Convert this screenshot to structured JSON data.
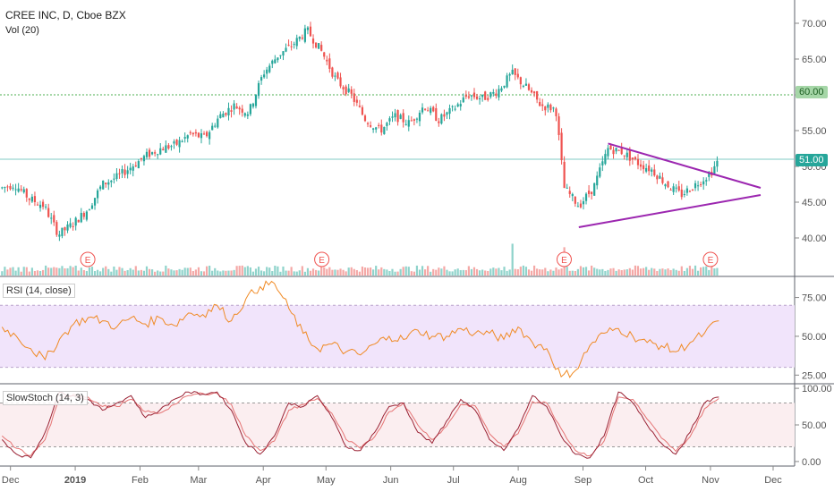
{
  "header": {
    "symbol_line": "CREE INC, D, Cboe BZX",
    "volume_label": "Vol (20)"
  },
  "panes": {
    "rsi_label": "RSI (14, close)",
    "stoch_label": "SlowStoch (14, 3)"
  },
  "price_tags": {
    "level_60": "60.00",
    "level_51": "51.00"
  },
  "earnings_marker": "E",
  "colors": {
    "up": "#26a69a",
    "down": "#ef5350",
    "trendline": "#9c27b0",
    "rsi_line": "#f08a24",
    "rsi_band": "#f1e4fb",
    "stoch_k": "#9b2335",
    "stoch_d": "#e57373",
    "hline_60": "#4caf50",
    "hline_51": "#80cbc4"
  },
  "chart_data": [
    {
      "type": "candlestick",
      "title": "CREE INC, D, Cboe BZX",
      "y_ticks": [
        "40.00",
        "45.00",
        "50.00",
        "55.00",
        "60.00",
        "65.00",
        "70.00"
      ],
      "ylim": [
        36,
        72
      ],
      "x_ticks": [
        "Dec",
        "2019",
        "Feb",
        "Mar",
        "Apr",
        "May",
        "Jun",
        "Jul",
        "Aug",
        "Sep",
        "Oct",
        "Nov",
        "Dec"
      ],
      "close_path": [
        [
          "2018-11-27",
          47.0
        ],
        [
          "2018-12-03",
          47.5
        ],
        [
          "2018-12-10",
          45.5
        ],
        [
          "2018-12-17",
          44.5
        ],
        [
          "2018-12-24",
          40.5
        ],
        [
          "2018-12-31",
          42.0
        ],
        [
          "2019-01-07",
          44.0
        ],
        [
          "2019-01-14",
          47.5
        ],
        [
          "2019-01-21",
          48.5
        ],
        [
          "2019-01-28",
          50.0
        ],
        [
          "2019-02-04",
          51.5
        ],
        [
          "2019-02-11",
          52.5
        ],
        [
          "2019-02-18",
          53.0
        ],
        [
          "2019-02-25",
          54.5
        ],
        [
          "2019-03-04",
          54.0
        ],
        [
          "2019-03-11",
          57.0
        ],
        [
          "2019-03-18",
          58.5
        ],
        [
          "2019-03-25",
          57.5
        ],
        [
          "2019-04-01",
          63.0
        ],
        [
          "2019-04-08",
          65.5
        ],
        [
          "2019-04-15",
          67.0
        ],
        [
          "2019-04-22",
          69.0
        ],
        [
          "2019-04-29",
          66.0
        ],
        [
          "2019-05-06",
          62.0
        ],
        [
          "2019-05-13",
          60.0
        ],
        [
          "2019-05-20",
          56.5
        ],
        [
          "2019-05-27",
          55.0
        ],
        [
          "2019-06-03",
          57.0
        ],
        [
          "2019-06-10",
          56.0
        ],
        [
          "2019-06-17",
          58.5
        ],
        [
          "2019-06-24",
          56.5
        ],
        [
          "2019-07-01",
          58.0
        ],
        [
          "2019-07-08",
          60.0
        ],
        [
          "2019-07-15",
          59.5
        ],
        [
          "2019-07-22",
          60.5
        ],
        [
          "2019-07-29",
          63.0
        ],
        [
          "2019-08-05",
          61.0
        ],
        [
          "2019-08-12",
          58.5
        ],
        [
          "2019-08-19",
          58.0
        ],
        [
          "2019-08-23",
          47.0
        ],
        [
          "2019-08-30",
          44.5
        ],
        [
          "2019-09-06",
          47.0
        ],
        [
          "2019-09-13",
          52.5
        ],
        [
          "2019-09-20",
          52.0
        ],
        [
          "2019-09-27",
          50.5
        ],
        [
          "2019-10-04",
          49.5
        ],
        [
          "2019-10-11",
          47.5
        ],
        [
          "2019-10-18",
          46.0
        ],
        [
          "2019-10-25",
          47.5
        ],
        [
          "2019-11-01",
          49.0
        ],
        [
          "2019-11-05",
          51.0
        ]
      ],
      "horizontal_lines": [
        60.0,
        51.0
      ],
      "trendlines": [
        {
          "from": [
            "2019-09-13",
            53.2
          ],
          "to": [
            "2019-11-25",
            47.0
          ]
        },
        {
          "from": [
            "2019-08-30",
            41.5
          ],
          "to": [
            "2019-11-25",
            46.0
          ]
        }
      ],
      "volume_spikes": [
        [
          "2019-07-29",
          2.2
        ],
        [
          "2019-08-23",
          1.8
        ],
        [
          "2019-11-01",
          1.1
        ]
      ],
      "earnings_dates": [
        "2019-01-07",
        "2019-04-29",
        "2019-08-23",
        "2019-11-01"
      ]
    },
    {
      "type": "line",
      "title": "RSI (14, close)",
      "y_ticks": [
        "25.00",
        "50.00",
        "75.00"
      ],
      "ylim": [
        20,
        88
      ],
      "band": [
        30,
        70
      ],
      "series": [
        {
          "values": [
            56,
            50,
            42,
            35,
            48,
            58,
            62,
            60,
            56,
            62,
            58,
            62,
            57,
            65,
            64,
            70,
            60,
            74,
            82,
            84,
            68,
            52,
            42,
            45,
            40,
            38,
            45,
            50,
            48,
            54,
            50,
            50,
            55,
            52,
            52,
            48,
            56,
            46,
            42,
            24,
            28,
            44,
            52,
            55,
            50,
            46,
            44,
            40,
            46,
            52,
            60
          ]
        }
      ]
    },
    {
      "type": "line",
      "title": "SlowStoch (14, 3)",
      "y_ticks": [
        "0.00",
        "50.00",
        "100.00"
      ],
      "ylim": [
        -5,
        105
      ],
      "band": [
        20,
        80
      ],
      "series": [
        {
          "values": [
            30,
            10,
            5,
            40,
            95,
            90,
            85,
            70,
            80,
            90,
            60,
            70,
            85,
            95,
            92,
            95,
            70,
            25,
            10,
            35,
            80,
            75,
            90,
            60,
            20,
            15,
            40,
            75,
            80,
            40,
            25,
            55,
            85,
            70,
            30,
            15,
            45,
            90,
            75,
            35,
            10,
            5,
            35,
            95,
            80,
            50,
            25,
            10,
            40,
            80,
            88
          ]
        },
        {
          "values": [
            35,
            18,
            8,
            30,
            85,
            92,
            88,
            75,
            75,
            85,
            68,
            66,
            78,
            90,
            93,
            93,
            78,
            35,
            15,
            28,
            70,
            78,
            86,
            66,
            30,
            18,
            34,
            68,
            80,
            50,
            30,
            48,
            78,
            76,
            38,
            20,
            38,
            82,
            80,
            45,
            15,
            8,
            28,
            88,
            85,
            58,
            32,
            14,
            34,
            72,
            86
          ]
        }
      ]
    }
  ]
}
